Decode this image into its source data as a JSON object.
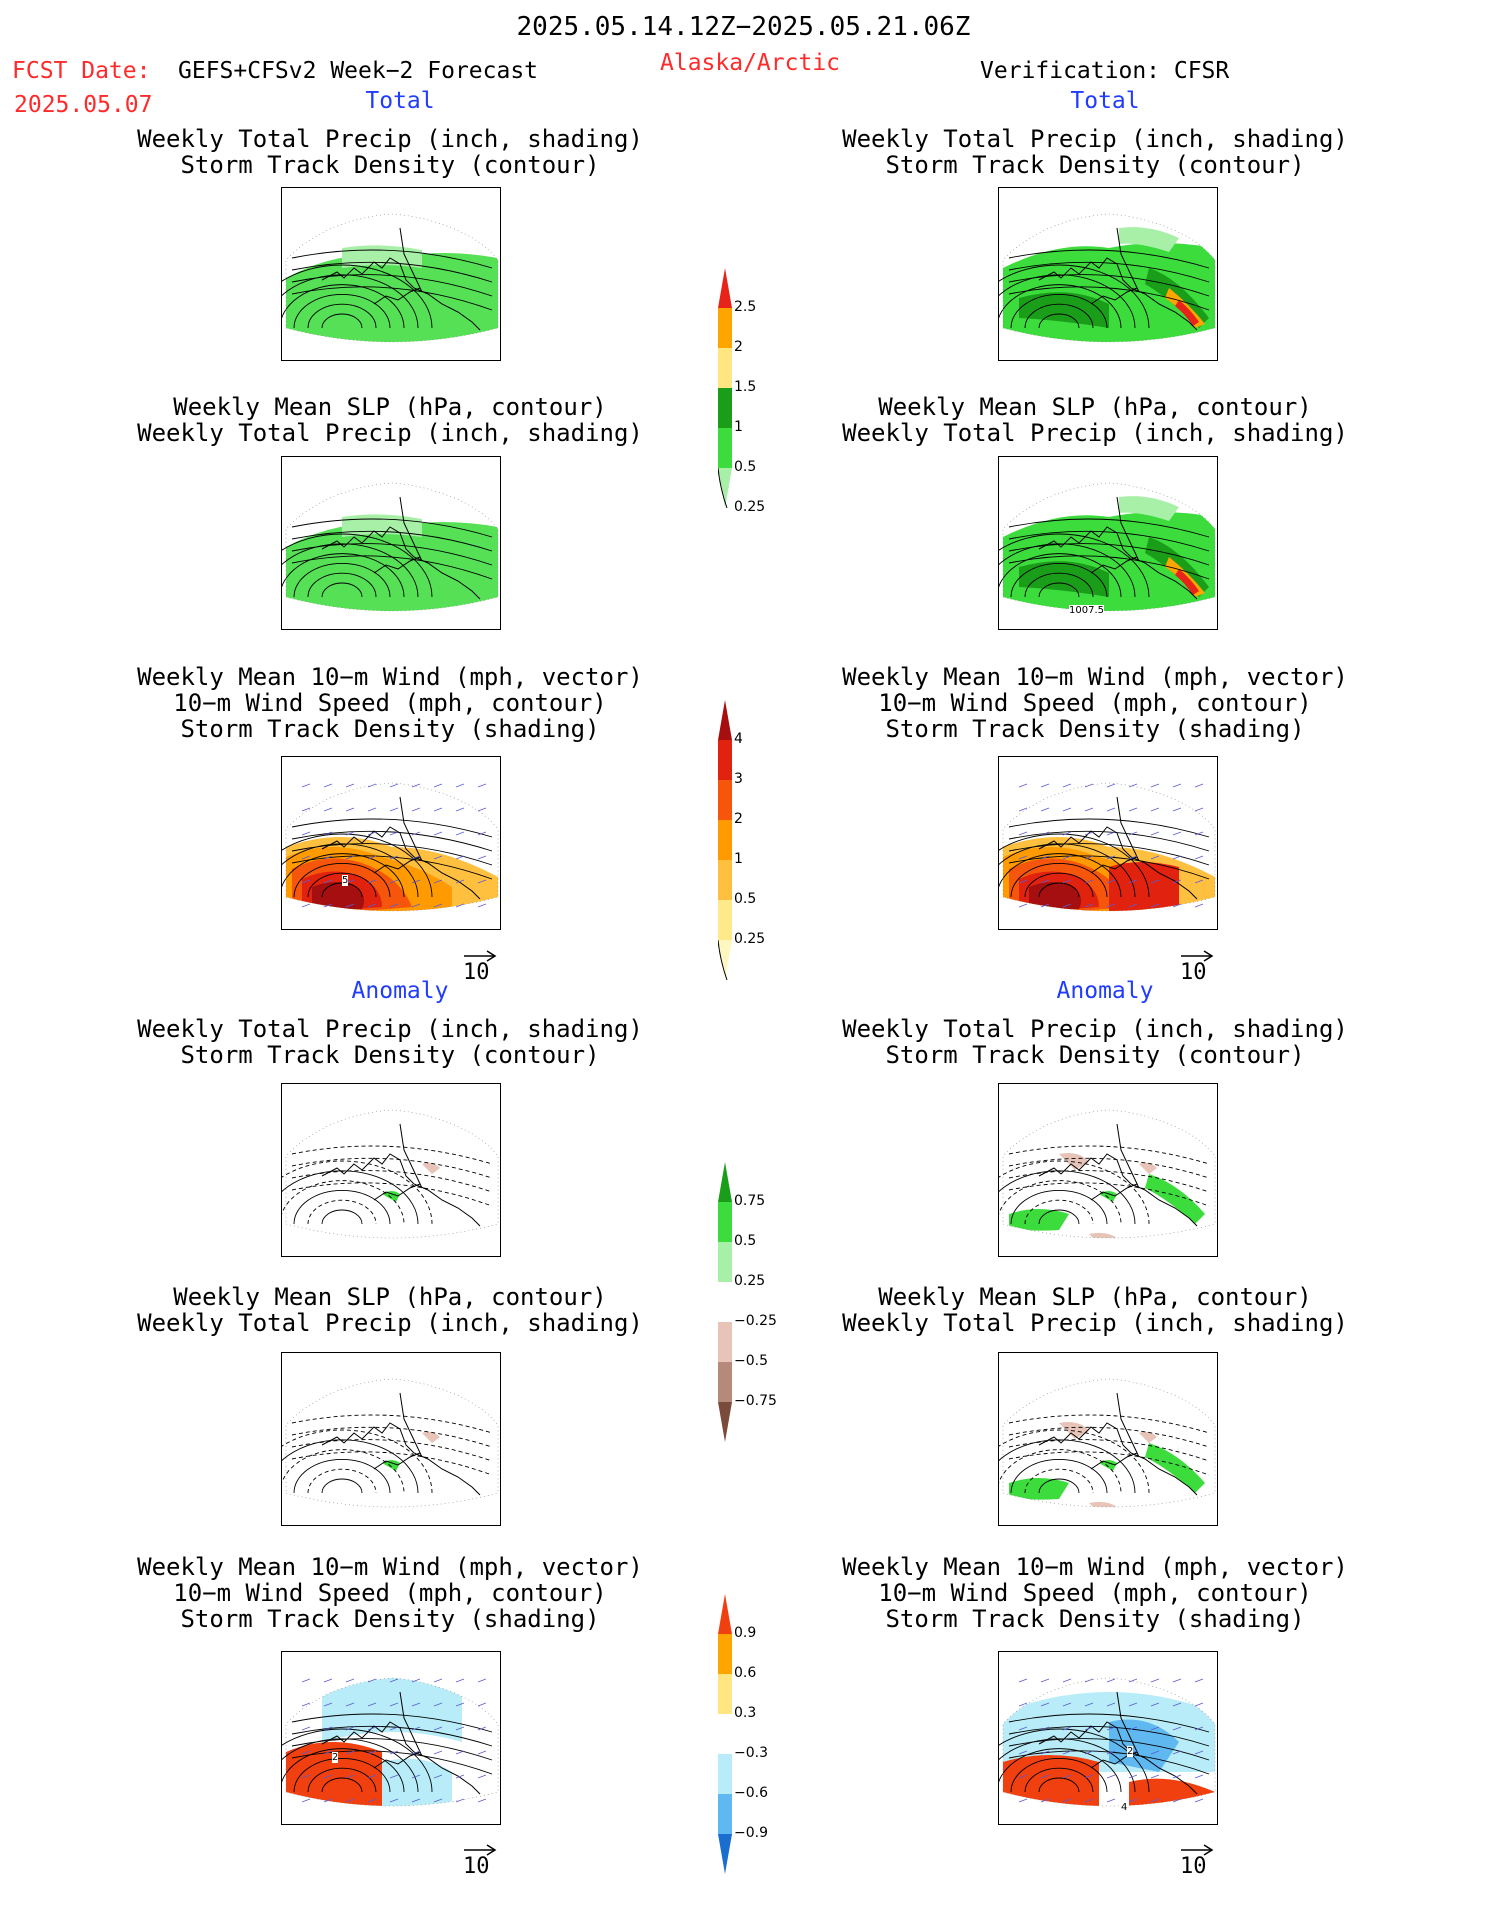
{
  "header": {
    "period": "2025.05.14.12Z−2025.05.21.06Z",
    "fcst_label": "FCST Date:",
    "model": "GEFS+CFSv2 Week−2 Forecast",
    "fcst_date": "2025.05.07",
    "region": "Alaska/Arctic",
    "verification": "Verification: CFSR"
  },
  "sections": {
    "total": "Total",
    "anomaly": "Anomaly"
  },
  "titles": {
    "precip_storm": [
      "Weekly Total Precip (inch, shading)",
      "Storm Track Density (contour)"
    ],
    "slp_precip": [
      "Weekly Mean SLP (hPa, contour)",
      "Weekly Total Precip (inch, shading)"
    ],
    "wind_storm": [
      "Weekly Mean 10−m Wind (mph, vector)",
      "10−m Wind Speed (mph, contour)",
      "Storm Track Density (shading)"
    ]
  },
  "panel_labels": {
    "slp_right": "1007.5",
    "wind_left": "5",
    "anom_wind_left": "2",
    "anom_wind_right_a": "2",
    "anom_wind_right_b": "4"
  },
  "vector_ref": "10",
  "colorbars": {
    "precip": {
      "labels": [
        "2.5",
        "2",
        "1.5",
        "1",
        "0.5",
        "0.25"
      ],
      "colors": [
        "#e8231a",
        "#ffa500",
        "#ffe680",
        "#1a9e1a",
        "#3ddc3d",
        "#a8f0a8"
      ]
    },
    "storm": {
      "labels": [
        "4",
        "3",
        "2",
        "1",
        "0.5",
        "0.25"
      ],
      "colors": [
        "#a50f0f",
        "#e0220f",
        "#f5560c",
        "#ff9a00",
        "#ffc040",
        "#ffe98a",
        "#fff7c0"
      ]
    },
    "precip_anom": {
      "labels": [
        "0.75",
        "0.5",
        "0.25",
        "−0.25",
        "−0.5",
        "−0.75"
      ],
      "colors": [
        "#1a9e1a",
        "#3ddc3d",
        "#a8f0a8",
        "#ffffff",
        "#e8c4b8",
        "#b58a7a",
        "#7a4a3a"
      ]
    },
    "storm_anom": {
      "labels": [
        "0.9",
        "0.6",
        "0.3",
        "−0.3",
        "−0.6",
        "−0.9"
      ],
      "colors": [
        "#f04010",
        "#ffa500",
        "#ffe680",
        "#ffffff",
        "#b8ecf8",
        "#60b8f0",
        "#1a6ed0"
      ]
    }
  }
}
